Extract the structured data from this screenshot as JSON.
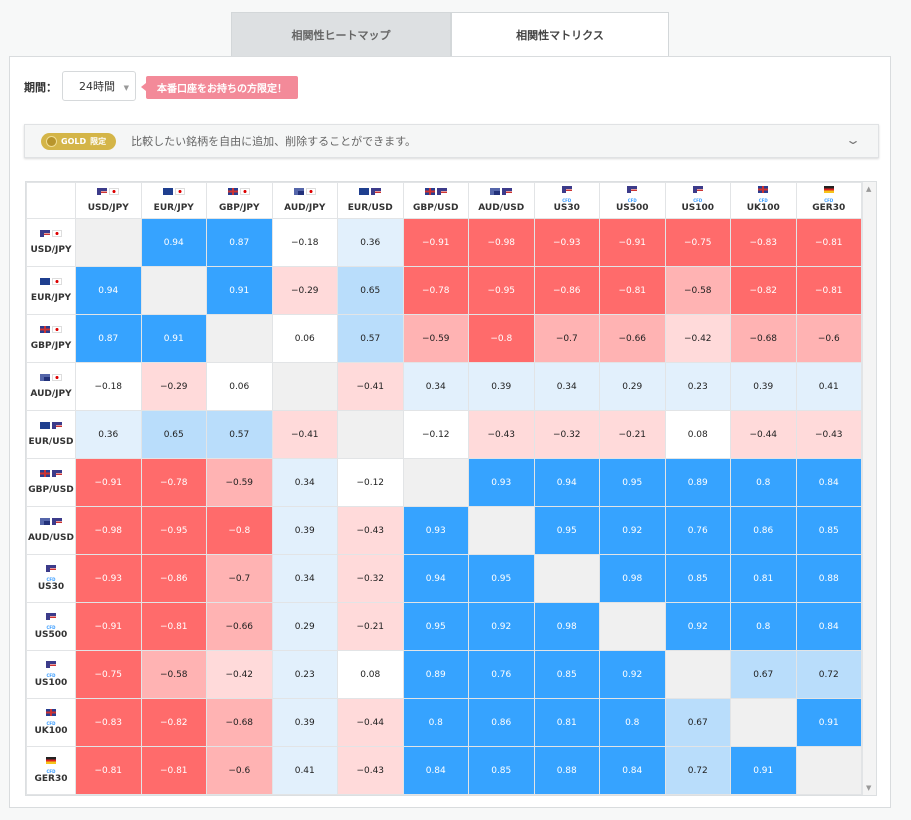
{
  "tabs": [
    {
      "label": "相関性ヒートマップ",
      "active": false
    },
    {
      "label": "相関性マトリクス",
      "active": true
    }
  ],
  "period": {
    "label": "期間：",
    "value": "24時間"
  },
  "promo": "本番口座をお持ちの方限定！",
  "gold": {
    "badge": "GOLD",
    "badge_sub": "限定",
    "text": "比較したい銘柄を自由に追加、削除することができます。",
    "chevron": "chevron-down-icon"
  },
  "colors": {
    "negative_strong": "#ff6b6b",
    "negative_mid": "#ffb3b3",
    "negative_light": "#ffdada",
    "positive_strong": "#36a3ff",
    "positive_mid": "#b9ddfb",
    "positive_light": "#e2f0fc",
    "neutral": "#ffffff",
    "diagonal": "#f0f0f0"
  },
  "symbols": [
    {
      "name": "USD/JPY",
      "flags": [
        "us",
        "jp"
      ],
      "sub": ""
    },
    {
      "name": "EUR/JPY",
      "flags": [
        "eu",
        "jp"
      ],
      "sub": ""
    },
    {
      "name": "GBP/JPY",
      "flags": [
        "gb",
        "jp"
      ],
      "sub": ""
    },
    {
      "name": "AUD/JPY",
      "flags": [
        "au",
        "jp"
      ],
      "sub": ""
    },
    {
      "name": "EUR/USD",
      "flags": [
        "eu",
        "us"
      ],
      "sub": ""
    },
    {
      "name": "GBP/USD",
      "flags": [
        "gb",
        "us"
      ],
      "sub": ""
    },
    {
      "name": "AUD/USD",
      "flags": [
        "au",
        "us"
      ],
      "sub": ""
    },
    {
      "name": "US30",
      "flags": [
        "us"
      ],
      "sub": "CFD"
    },
    {
      "name": "US500",
      "flags": [
        "us"
      ],
      "sub": "CFD"
    },
    {
      "name": "US100",
      "flags": [
        "us"
      ],
      "sub": "CFD"
    },
    {
      "name": "UK100",
      "flags": [
        "gb"
      ],
      "sub": "CFD"
    },
    {
      "name": "GER30",
      "flags": [
        "de"
      ],
      "sub": "CFD"
    }
  ],
  "matrix": [
    [
      null,
      "0.94",
      "0.87",
      "-0.18",
      "0.36",
      "-0.91",
      "-0.98",
      "-0.93",
      "-0.91",
      "-0.75",
      "-0.83",
      "-0.81"
    ],
    [
      "0.94",
      null,
      "0.91",
      "-0.29",
      "0.65",
      "-0.78",
      "-0.95",
      "-0.86",
      "-0.81",
      "-0.58",
      "-0.82",
      "-0.81"
    ],
    [
      "0.87",
      "0.91",
      null,
      "0.06",
      "0.57",
      "-0.59",
      "-0.8",
      "-0.7",
      "-0.66",
      "-0.42",
      "-0.68",
      "-0.6"
    ],
    [
      "-0.18",
      "-0.29",
      "0.06",
      null,
      "-0.41",
      "0.34",
      "0.39",
      "0.34",
      "0.29",
      "0.23",
      "0.39",
      "0.41"
    ],
    [
      "0.36",
      "0.65",
      "0.57",
      "-0.41",
      null,
      "-0.12",
      "-0.43",
      "-0.32",
      "-0.21",
      "0.08",
      "-0.44",
      "-0.43"
    ],
    [
      "-0.91",
      "-0.78",
      "-0.59",
      "0.34",
      "-0.12",
      null,
      "0.93",
      "0.94",
      "0.95",
      "0.89",
      "0.8",
      "0.84"
    ],
    [
      "-0.98",
      "-0.95",
      "-0.8",
      "0.39",
      "-0.43",
      "0.93",
      null,
      "0.95",
      "0.92",
      "0.76",
      "0.86",
      "0.85"
    ],
    [
      "-0.93",
      "-0.86",
      "-0.7",
      "0.34",
      "-0.32",
      "0.94",
      "0.95",
      null,
      "0.98",
      "0.85",
      "0.81",
      "0.88"
    ],
    [
      "-0.91",
      "-0.81",
      "-0.66",
      "0.29",
      "-0.21",
      "0.95",
      "0.92",
      "0.98",
      null,
      "0.92",
      "0.8",
      "0.84"
    ],
    [
      "-0.75",
      "-0.58",
      "-0.42",
      "0.23",
      "0.08",
      "0.89",
      "0.76",
      "0.85",
      "0.92",
      null,
      "0.67",
      "0.72"
    ],
    [
      "-0.83",
      "-0.82",
      "-0.68",
      "0.39",
      "-0.44",
      "0.8",
      "0.86",
      "0.81",
      "0.8",
      "0.67",
      null,
      "0.91"
    ],
    [
      "-0.81",
      "-0.81",
      "-0.6",
      "0.41",
      "-0.43",
      "0.84",
      "0.85",
      "0.88",
      "0.84",
      "0.72",
      "0.91",
      null
    ]
  ]
}
